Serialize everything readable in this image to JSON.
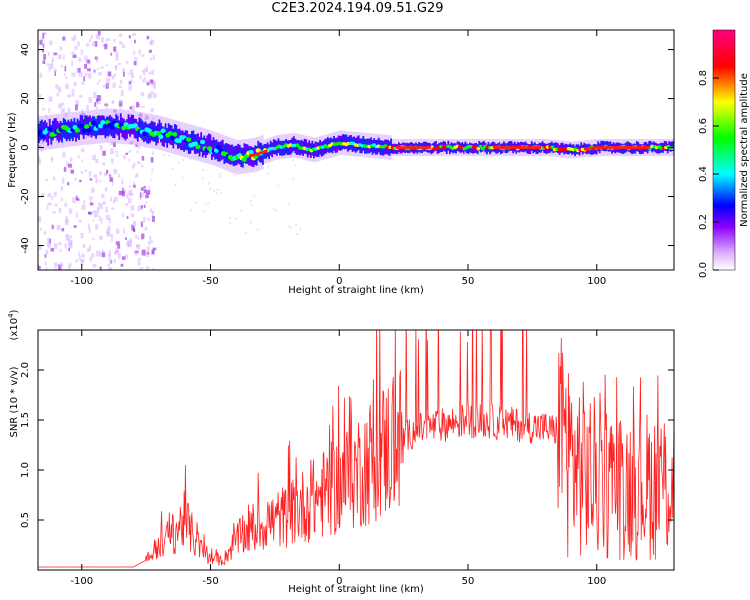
{
  "title": "C2E3.2024.194.09.51.G29",
  "colors": {
    "snr_line": "#ff2020",
    "axis": "#000000"
  },
  "chart_data": [
    {
      "type": "heatmap",
      "name": "spectrogram",
      "xlabel": "Height of straight line (km)",
      "ylabel": "Frequency (Hz)",
      "xlim": [
        -117,
        130
      ],
      "ylim": [
        -50,
        48
      ],
      "x_ticks": [
        -100,
        -50,
        0,
        50,
        100
      ],
      "y_ticks": [
        -40,
        -20,
        0,
        20,
        40
      ],
      "colorbar": {
        "label": "Normalized spectral amplitude",
        "range": [
          0,
          1
        ],
        "ticks": [
          0.0,
          0.2,
          0.4,
          0.6,
          0.8
        ],
        "colormap": [
          "#ffffff",
          "#e0b0ff",
          "#8800ff",
          "#0000ff",
          "#00ffff",
          "#00ff00",
          "#ffff00",
          "#ff0000",
          "#ff0080"
        ]
      },
      "ridge": [
        {
          "x": -115,
          "y": 6
        },
        {
          "x": -100,
          "y": 8
        },
        {
          "x": -90,
          "y": 9
        },
        {
          "x": -80,
          "y": 8
        },
        {
          "x": -70,
          "y": 6
        },
        {
          "x": -60,
          "y": 3
        },
        {
          "x": -50,
          "y": 0
        },
        {
          "x": -40,
          "y": -4
        },
        {
          "x": -33,
          "y": -3
        },
        {
          "x": -25,
          "y": 0
        },
        {
          "x": -18,
          "y": 1
        },
        {
          "x": -10,
          "y": -1
        },
        {
          "x": 0,
          "y": 2
        },
        {
          "x": 10,
          "y": 1
        },
        {
          "x": 20,
          "y": 0
        },
        {
          "x": 40,
          "y": 0
        },
        {
          "x": 60,
          "y": 0
        },
        {
          "x": 80,
          "y": 0
        },
        {
          "x": 90,
          "y": -1
        },
        {
          "x": 100,
          "y": 0
        },
        {
          "x": 115,
          "y": 0
        },
        {
          "x": 130,
          "y": 0
        }
      ]
    },
    {
      "type": "line",
      "name": "snr",
      "xlabel": "Height of straight line (km)",
      "ylabel": "SNR (10 * v/v)",
      "y_multiplier": "(x10",
      "y_multiplier_exp": "4",
      "y_multiplier_close": ")",
      "xlim": [
        -117,
        130
      ],
      "ylim": [
        0,
        2.4
      ],
      "x_ticks": [
        -100,
        -50,
        0,
        50,
        100
      ],
      "y_ticks": [
        0.5,
        1.0,
        1.5,
        2.0
      ],
      "envelope": [
        {
          "x": -117,
          "y": 0.03
        },
        {
          "x": -80,
          "y": 0.03
        },
        {
          "x": -75,
          "y": 0.1
        },
        {
          "x": -70,
          "y": 0.25
        },
        {
          "x": -65,
          "y": 0.35
        },
        {
          "x": -60,
          "y": 0.5
        },
        {
          "x": -55,
          "y": 0.25
        },
        {
          "x": -50,
          "y": 0.1
        },
        {
          "x": -45,
          "y": 0.1
        },
        {
          "x": -40,
          "y": 0.3
        },
        {
          "x": -30,
          "y": 0.45
        },
        {
          "x": -20,
          "y": 0.55
        },
        {
          "x": -10,
          "y": 0.7
        },
        {
          "x": 0,
          "y": 0.85
        },
        {
          "x": 10,
          "y": 1.05
        },
        {
          "x": 20,
          "y": 1.25
        },
        {
          "x": 30,
          "y": 1.4
        },
        {
          "x": 40,
          "y": 1.45
        },
        {
          "x": 50,
          "y": 1.5
        },
        {
          "x": 60,
          "y": 1.48
        },
        {
          "x": 70,
          "y": 1.45
        },
        {
          "x": 80,
          "y": 1.42
        },
        {
          "x": 86,
          "y": 1.38
        },
        {
          "x": 90,
          "y": 1.1
        },
        {
          "x": 100,
          "y": 0.9
        },
        {
          "x": 110,
          "y": 0.85
        },
        {
          "x": 120,
          "y": 0.85
        },
        {
          "x": 130,
          "y": 0.9
        }
      ]
    }
  ]
}
